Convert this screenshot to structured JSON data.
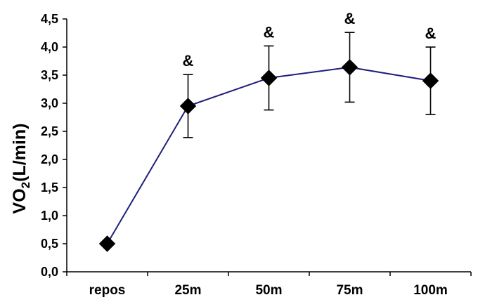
{
  "chart_data": {
    "type": "line",
    "title": "",
    "xlabel": "",
    "ylabel": {
      "main": "VO",
      "sub": "2",
      "unit": "(L/min)"
    },
    "categories": [
      "repos",
      "25m",
      "50m",
      "75m",
      "100m"
    ],
    "series": [
      {
        "values": [
          0.5,
          2.95,
          3.45,
          3.64,
          3.4
        ],
        "error": [
          0.05,
          0.56,
          0.57,
          0.62,
          0.6
        ],
        "color": "#1F1F7A",
        "marker": "diamond"
      }
    ],
    "annotations": [
      "&",
      "&",
      "&",
      "&"
    ],
    "annotation_categories": [
      "25m",
      "50m",
      "75m",
      "100m"
    ],
    "yticks": [
      "0,0",
      "0,5",
      "1,0",
      "1,5",
      "2,0",
      "2,5",
      "3,0",
      "3,5",
      "4,0",
      "4,5"
    ],
    "ylim": [
      0,
      4.5
    ],
    "grid": false
  }
}
